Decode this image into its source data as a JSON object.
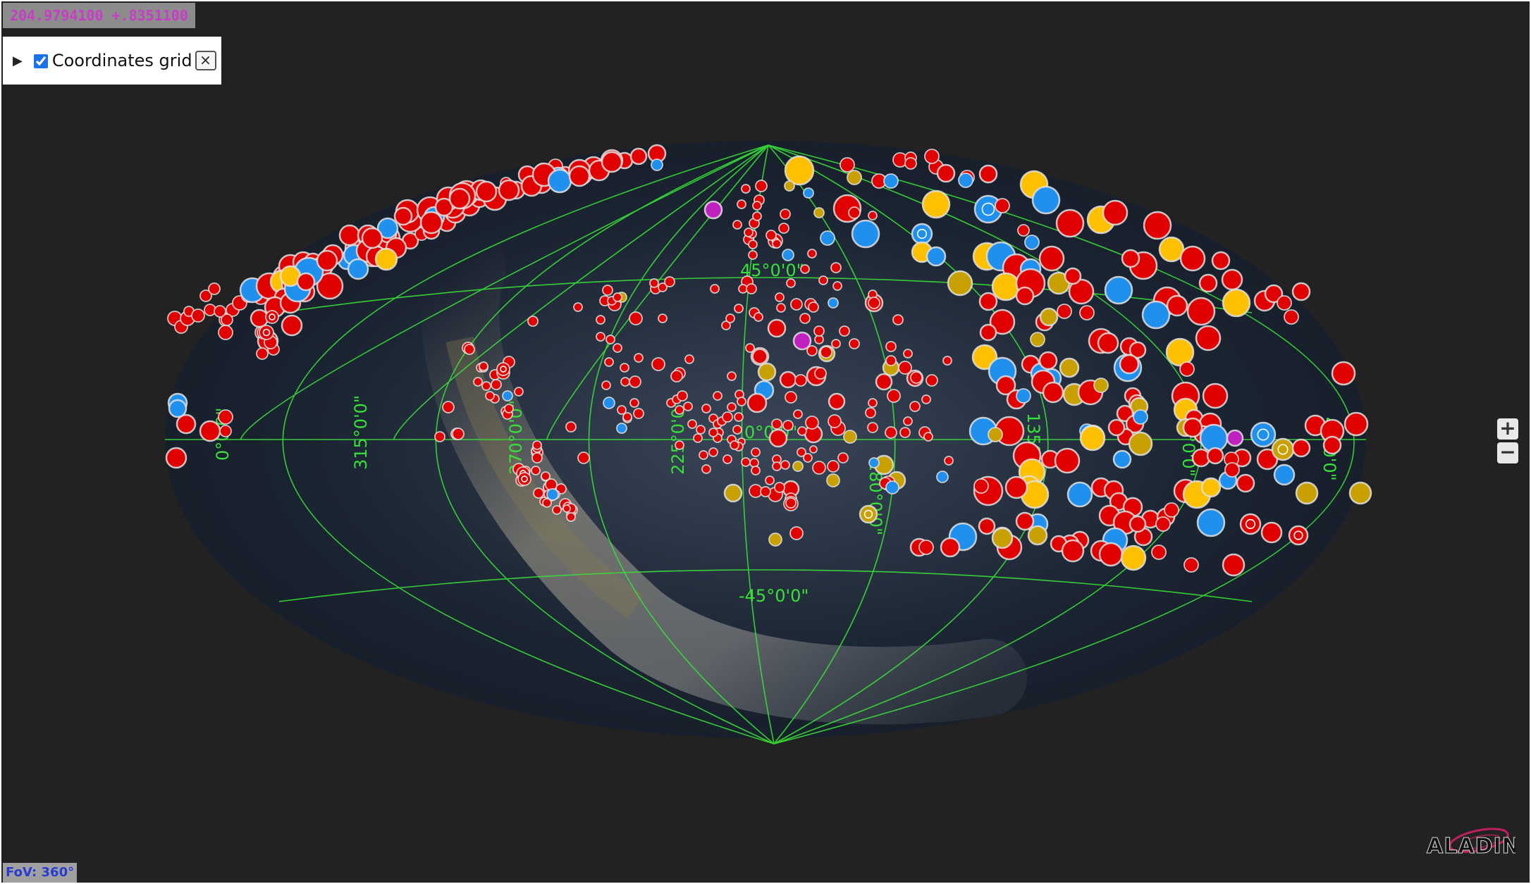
{
  "app": {
    "name": "Aladin Lite"
  },
  "position": {
    "text": "204.9794100 +.8351100"
  },
  "layers": {
    "expand_glyph": "▶",
    "grid_label": "Coordinates grid",
    "grid_checked": true,
    "close_glyph": "×"
  },
  "grid": {
    "lat_labels": [
      "45°0'0\"",
      "0°0'0\"",
      "-45°0'0\""
    ],
    "lon_labels": [
      "0°0'0\"",
      "315°0'0\"",
      "270°0'0\"",
      "225°0'0\"",
      "180°0'0\"",
      "135°0'0\"",
      "90°0'0\"",
      "45°0'0\""
    ]
  },
  "zoom": {
    "in_label": "+",
    "out_label": "−"
  },
  "fov": {
    "text": "FoV: 360°"
  },
  "logo": {
    "text": "ALADIN",
    "icon": "aladin-logo-icon"
  },
  "colors": {
    "background": "#222222",
    "grid": "#38e038",
    "marker_red": "#e00000",
    "marker_blue": "#2090ee",
    "marker_yellow": "#ffc000",
    "marker_gold": "#c8a000",
    "marker_magenta": "#c020c0",
    "position_text": "#c83cc8",
    "fov_text": "#2a3cd0"
  }
}
